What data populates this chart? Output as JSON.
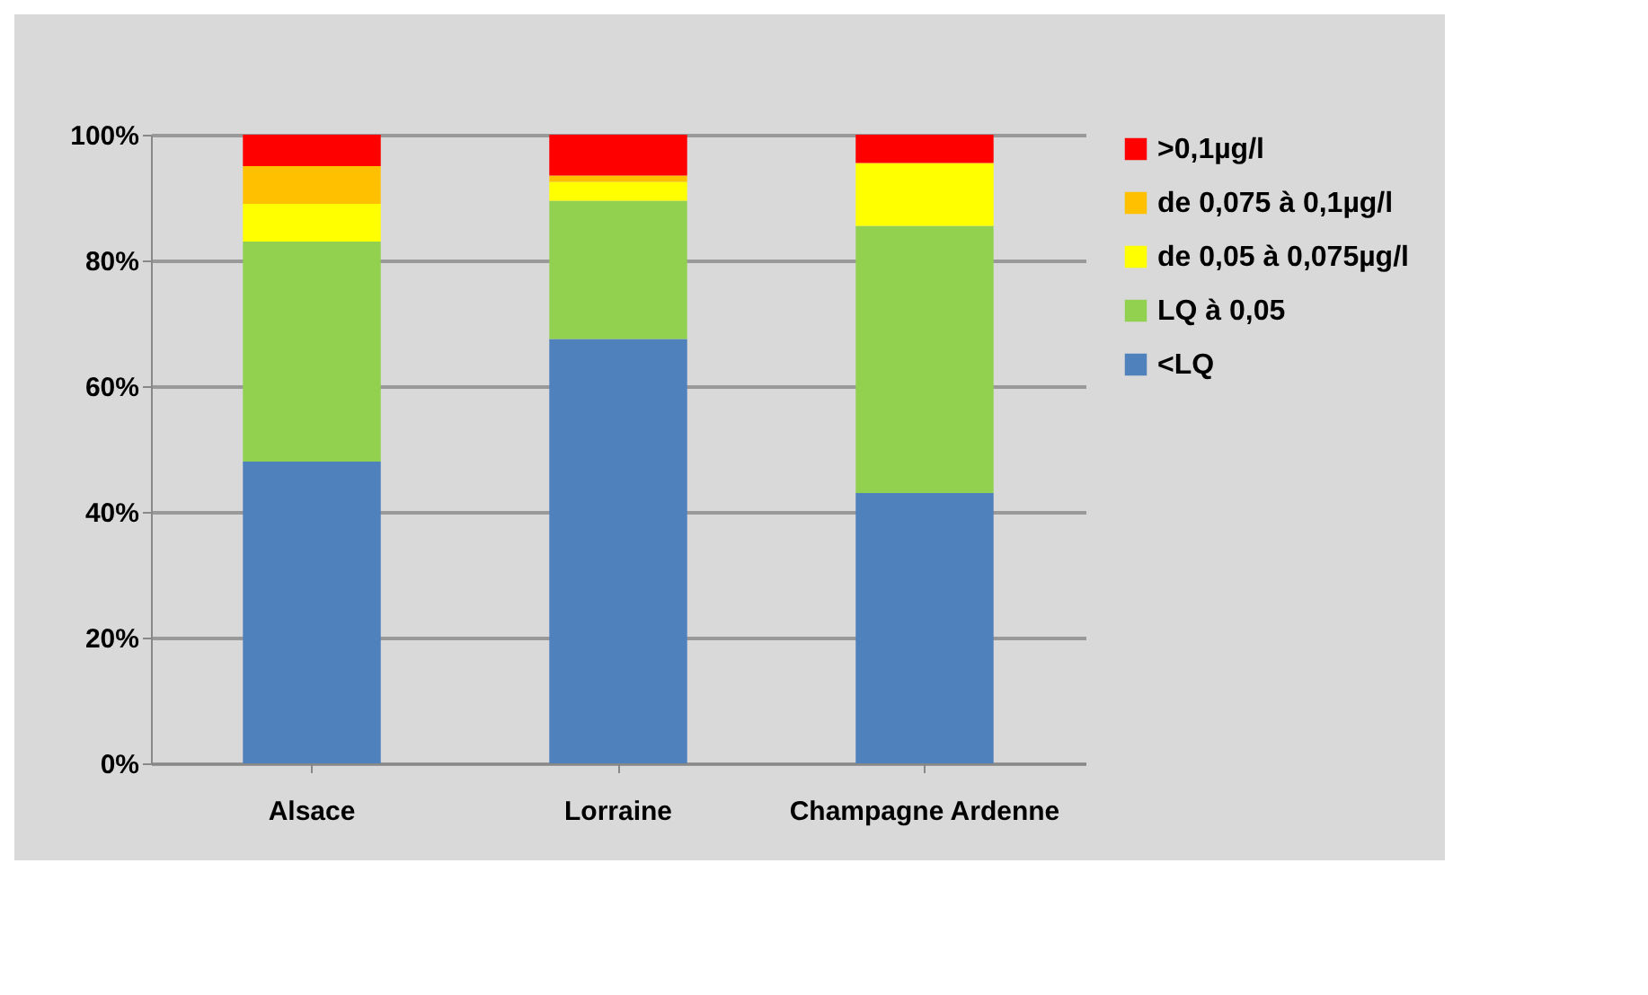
{
  "chart_data": {
    "type": "bar",
    "stacked": true,
    "categories": [
      "Alsace",
      "Lorraine",
      "Champagne Ardenne"
    ],
    "series": [
      {
        "name": "<LQ",
        "color": "#4f81bd",
        "values": [
          48,
          67.5,
          43
        ]
      },
      {
        "name": "LQ à 0,05",
        "color": "#92d050",
        "values": [
          35,
          22,
          42.5
        ]
      },
      {
        "name": "de 0,05 à 0,075µg/l",
        "color": "#ffff00",
        "values": [
          6,
          3,
          10
        ]
      },
      {
        "name": "de 0,075 à 0,1µg/l",
        "color": "#ffc000",
        "values": [
          6,
          1,
          0
        ]
      },
      {
        "name": ">0,1µg/l",
        "color": "#ff0000",
        "values": [
          5,
          6.5,
          4.5
        ]
      }
    ],
    "ylim": [
      0,
      100
    ],
    "yticks": [
      {
        "value": 0,
        "label": "0%"
      },
      {
        "value": 20,
        "label": "20%"
      },
      {
        "value": 40,
        "label": "40%"
      },
      {
        "value": 60,
        "label": "60%"
      },
      {
        "value": 80,
        "label": "80%"
      },
      {
        "value": 100,
        "label": "100%"
      }
    ],
    "grid": "y",
    "legend": "right"
  }
}
